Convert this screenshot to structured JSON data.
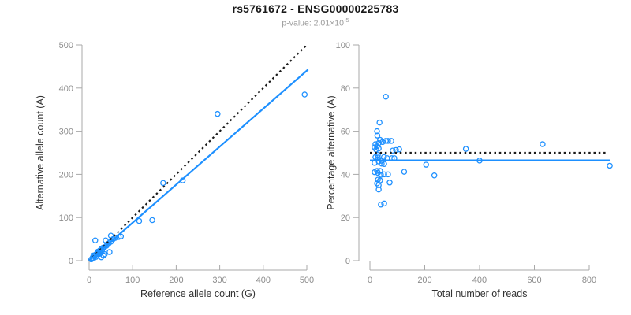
{
  "header": {
    "title": "rs5761672 - ENSG00000225783",
    "subtitle_text": "p-value: 2.01×10",
    "subtitle_exponent": "-5"
  },
  "colors": {
    "accent": "#1E90FF",
    "dotted_line": "#1a1a1a",
    "axis_line": "#a9a9a9",
    "tick_label": "#8c8c8c",
    "axis_title": "#333333",
    "title": "#1a1a1a",
    "subtitle": "#9a9a9a",
    "background": "#ffffff"
  },
  "chart_data": [
    {
      "type": "scatter",
      "title": "",
      "xlabel": "Reference allele count (G)",
      "ylabel": "Alternative allele count (A)",
      "xlim": [
        0,
        500
      ],
      "ylim": [
        0,
        500
      ],
      "xticks": [
        0,
        100,
        200,
        300,
        400,
        500
      ],
      "yticks": [
        0,
        100,
        200,
        300,
        400,
        500
      ],
      "grid": false,
      "legend": "none",
      "marker": "open-circle",
      "points": [
        [
          5,
          3
        ],
        [
          8,
          7
        ],
        [
          10,
          5
        ],
        [
          10,
          12
        ],
        [
          12,
          10
        ],
        [
          14,
          47
        ],
        [
          15,
          14
        ],
        [
          16,
          9
        ],
        [
          18,
          17
        ],
        [
          20,
          15
        ],
        [
          20,
          21
        ],
        [
          22,
          19
        ],
        [
          24,
          16
        ],
        [
          25,
          24
        ],
        [
          27,
          22
        ],
        [
          28,
          8
        ],
        [
          28,
          28
        ],
        [
          30,
          25
        ],
        [
          32,
          30
        ],
        [
          33,
          12
        ],
        [
          35,
          31
        ],
        [
          36,
          15
        ],
        [
          38,
          47
        ],
        [
          40,
          35
        ],
        [
          42,
          38
        ],
        [
          45,
          40
        ],
        [
          47,
          20
        ],
        [
          50,
          44
        ],
        [
          50,
          58
        ],
        [
          55,
          50
        ],
        [
          60,
          53
        ],
        [
          68,
          55
        ],
        [
          73,
          56
        ],
        [
          115,
          92
        ],
        [
          145,
          94
        ],
        [
          170,
          180
        ],
        [
          215,
          186
        ],
        [
          295,
          340
        ],
        [
          495,
          385
        ]
      ],
      "lines": [
        {
          "name": "identity-line",
          "style": "dotted",
          "color": "#1a1a1a",
          "x": [
            0,
            502
          ],
          "y": [
            0,
            502
          ]
        },
        {
          "name": "regression-line",
          "style": "solid",
          "color": "#1E90FF",
          "x": [
            0,
            503
          ],
          "y": [
            0,
            443
          ]
        }
      ]
    },
    {
      "type": "scatter",
      "title": "",
      "xlabel": "Total number of reads",
      "ylabel": "Percentage alternative (A)",
      "xlim": [
        0,
        900
      ],
      "ylim": [
        0,
        100
      ],
      "xticks": [
        0,
        200,
        400,
        600,
        800
      ],
      "yticks": [
        0,
        20,
        40,
        60,
        80,
        100
      ],
      "grid": false,
      "legend": "none",
      "marker": "open-circle",
      "points": [
        [
          58,
          76
        ],
        [
          35,
          64
        ],
        [
          26,
          60
        ],
        [
          27,
          58
        ],
        [
          37,
          56
        ],
        [
          20,
          54
        ],
        [
          32,
          54.5
        ],
        [
          46,
          55
        ],
        [
          58,
          55.5
        ],
        [
          66,
          55.5
        ],
        [
          78,
          55.5
        ],
        [
          17,
          52.5
        ],
        [
          26,
          53
        ],
        [
          23,
          51.5
        ],
        [
          32,
          52
        ],
        [
          83,
          51
        ],
        [
          95,
          51.3
        ],
        [
          107,
          51.6
        ],
        [
          350,
          51.8
        ],
        [
          630,
          54
        ],
        [
          29,
          49
        ],
        [
          20,
          48
        ],
        [
          29,
          47.8
        ],
        [
          51,
          48
        ],
        [
          63,
          47.5
        ],
        [
          80,
          47.5
        ],
        [
          89,
          47.5
        ],
        [
          32,
          46
        ],
        [
          43,
          46.3
        ],
        [
          17,
          45.3
        ],
        [
          43,
          45
        ],
        [
          52,
          44.8
        ],
        [
          400,
          46.4
        ],
        [
          875,
          44
        ],
        [
          205,
          44.5
        ],
        [
          26,
          41.6
        ],
        [
          37,
          41.6
        ],
        [
          17,
          41
        ],
        [
          29,
          40.7
        ],
        [
          40,
          39.8
        ],
        [
          52,
          40
        ],
        [
          66,
          40
        ],
        [
          125,
          41.2
        ],
        [
          235,
          39.5
        ],
        [
          29,
          37.5
        ],
        [
          37,
          37.2
        ],
        [
          72,
          36.2
        ],
        [
          26,
          35.8
        ],
        [
          32,
          35
        ],
        [
          32,
          33
        ],
        [
          40,
          26
        ],
        [
          52,
          26.5
        ]
      ],
      "lines": [
        {
          "name": "expected-50pct-line",
          "style": "dotted",
          "color": "#1a1a1a",
          "x": [
            0,
            860
          ],
          "y": [
            50,
            50
          ]
        },
        {
          "name": "mean-percentage-line",
          "style": "solid",
          "color": "#1E90FF",
          "x": [
            0,
            875
          ],
          "y": [
            46.5,
            46.5
          ]
        }
      ]
    }
  ]
}
